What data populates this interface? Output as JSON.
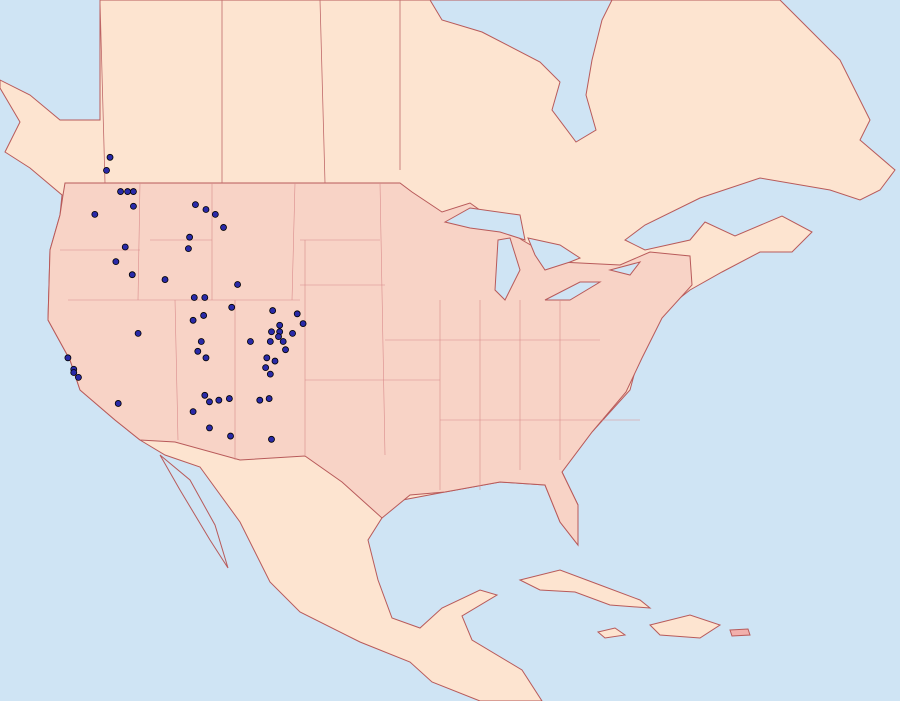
{
  "map": {
    "points": [
      {
        "lon": -119.4,
        "lat": 49.8
      },
      {
        "lon": -119.1,
        "lat": 50.6
      },
      {
        "lon": -118.2,
        "lat": 48.5
      },
      {
        "lon": -117.6,
        "lat": 48.5
      },
      {
        "lon": -117.1,
        "lat": 48.5
      },
      {
        "lon": -117.1,
        "lat": 47.6
      },
      {
        "lon": -120.4,
        "lat": 47.1
      },
      {
        "lon": -117.8,
        "lat": 45.1
      },
      {
        "lon": -118.6,
        "lat": 44.2
      },
      {
        "lon": -117.2,
        "lat": 43.4
      },
      {
        "lon": -114.4,
        "lat": 43.1
      },
      {
        "lon": -111.8,
        "lat": 47.7
      },
      {
        "lon": -110.9,
        "lat": 47.4
      },
      {
        "lon": -110.1,
        "lat": 47.1
      },
      {
        "lon": -109.4,
        "lat": 46.3
      },
      {
        "lon": -112.3,
        "lat": 45.7
      },
      {
        "lon": -112.4,
        "lat": 45.0
      },
      {
        "lon": -108.2,
        "lat": 42.8
      },
      {
        "lon": -111.9,
        "lat": 42.0
      },
      {
        "lon": -111.0,
        "lat": 42.0
      },
      {
        "lon": -108.7,
        "lat": 41.4
      },
      {
        "lon": -112.0,
        "lat": 40.6
      },
      {
        "lon": -111.1,
        "lat": 40.9
      },
      {
        "lon": -116.7,
        "lat": 39.8
      },
      {
        "lon": -105.2,
        "lat": 41.2
      },
      {
        "lon": -103.1,
        "lat": 41.0
      },
      {
        "lon": -102.6,
        "lat": 40.4
      },
      {
        "lon": -105.3,
        "lat": 39.9
      },
      {
        "lon": -104.6,
        "lat": 40.3
      },
      {
        "lon": -104.6,
        "lat": 39.9
      },
      {
        "lon": -104.7,
        "lat": 39.6
      },
      {
        "lon": -104.3,
        "lat": 39.3
      },
      {
        "lon": -104.1,
        "lat": 38.8
      },
      {
        "lon": -105.4,
        "lat": 39.3
      },
      {
        "lon": -107.1,
        "lat": 39.3
      },
      {
        "lon": -103.5,
        "lat": 39.8
      },
      {
        "lon": -105.7,
        "lat": 38.3
      },
      {
        "lon": -105.0,
        "lat": 38.1
      },
      {
        "lon": -105.8,
        "lat": 37.7
      },
      {
        "lon": -105.4,
        "lat": 37.3
      },
      {
        "lon": -111.3,
        "lat": 39.3
      },
      {
        "lon": -111.6,
        "lat": 38.7
      },
      {
        "lon": -110.9,
        "lat": 38.3
      },
      {
        "lon": -122.7,
        "lat": 38.3
      },
      {
        "lon": -122.2,
        "lat": 37.6
      },
      {
        "lon": -121.8,
        "lat": 37.1
      },
      {
        "lon": -122.2,
        "lat": 37.4
      },
      {
        "lon": -118.4,
        "lat": 35.5
      },
      {
        "lon": -111.0,
        "lat": 36.0
      },
      {
        "lon": -110.6,
        "lat": 35.6
      },
      {
        "lon": -109.8,
        "lat": 35.7
      },
      {
        "lon": -108.9,
        "lat": 35.8
      },
      {
        "lon": -112.0,
        "lat": 35.0
      },
      {
        "lon": -110.6,
        "lat": 34.0
      },
      {
        "lon": -108.8,
        "lat": 33.5
      },
      {
        "lon": -106.3,
        "lat": 35.7
      },
      {
        "lon": -105.5,
        "lat": 35.8
      },
      {
        "lon": -105.3,
        "lat": 33.3
      }
    ]
  }
}
